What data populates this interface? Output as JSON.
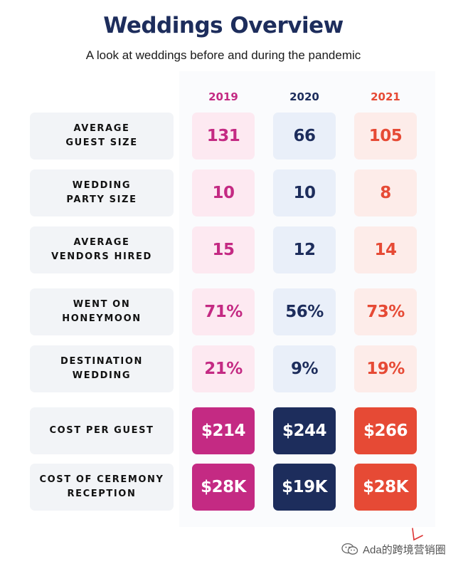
{
  "title": "Weddings Overview",
  "subtitle": "A look at weddings before and during the pandemic",
  "colors": {
    "2019": "#c42a83",
    "2020": "#1d2d5c",
    "2021": "#e64a35",
    "2019_light": "#fde9f1",
    "2020_light": "#e9eff9",
    "2021_light": "#fdece9"
  },
  "watermark": "Ada的跨境营销圈",
  "chart_data": {
    "type": "table",
    "columns": [
      "2019",
      "2020",
      "2021"
    ],
    "rows": [
      {
        "label": "AVERAGE\nGUEST SIZE",
        "values": [
          "131",
          "66",
          "105"
        ],
        "style": "light"
      },
      {
        "label": "WEDDING\nPARTY SIZE",
        "values": [
          "10",
          "10",
          "8"
        ],
        "style": "light"
      },
      {
        "label": "AVERAGE\nVENDORS HIRED",
        "values": [
          "15",
          "12",
          "14"
        ],
        "style": "light"
      },
      {
        "label": "WENT ON\nHONEYMOON",
        "values": [
          "71%",
          "56%",
          "73%"
        ],
        "style": "light"
      },
      {
        "label": "DESTINATION\nWEDDING",
        "values": [
          "21%",
          "9%",
          "19%"
        ],
        "style": "light"
      },
      {
        "label": "COST PER GUEST",
        "values": [
          "$214",
          "$244",
          "$266"
        ],
        "style": "filled"
      },
      {
        "label": "COST OF CEREMONY\nRECEPTION",
        "values": [
          "$28K",
          "$19K",
          "$28K"
        ],
        "style": "filled"
      }
    ]
  }
}
